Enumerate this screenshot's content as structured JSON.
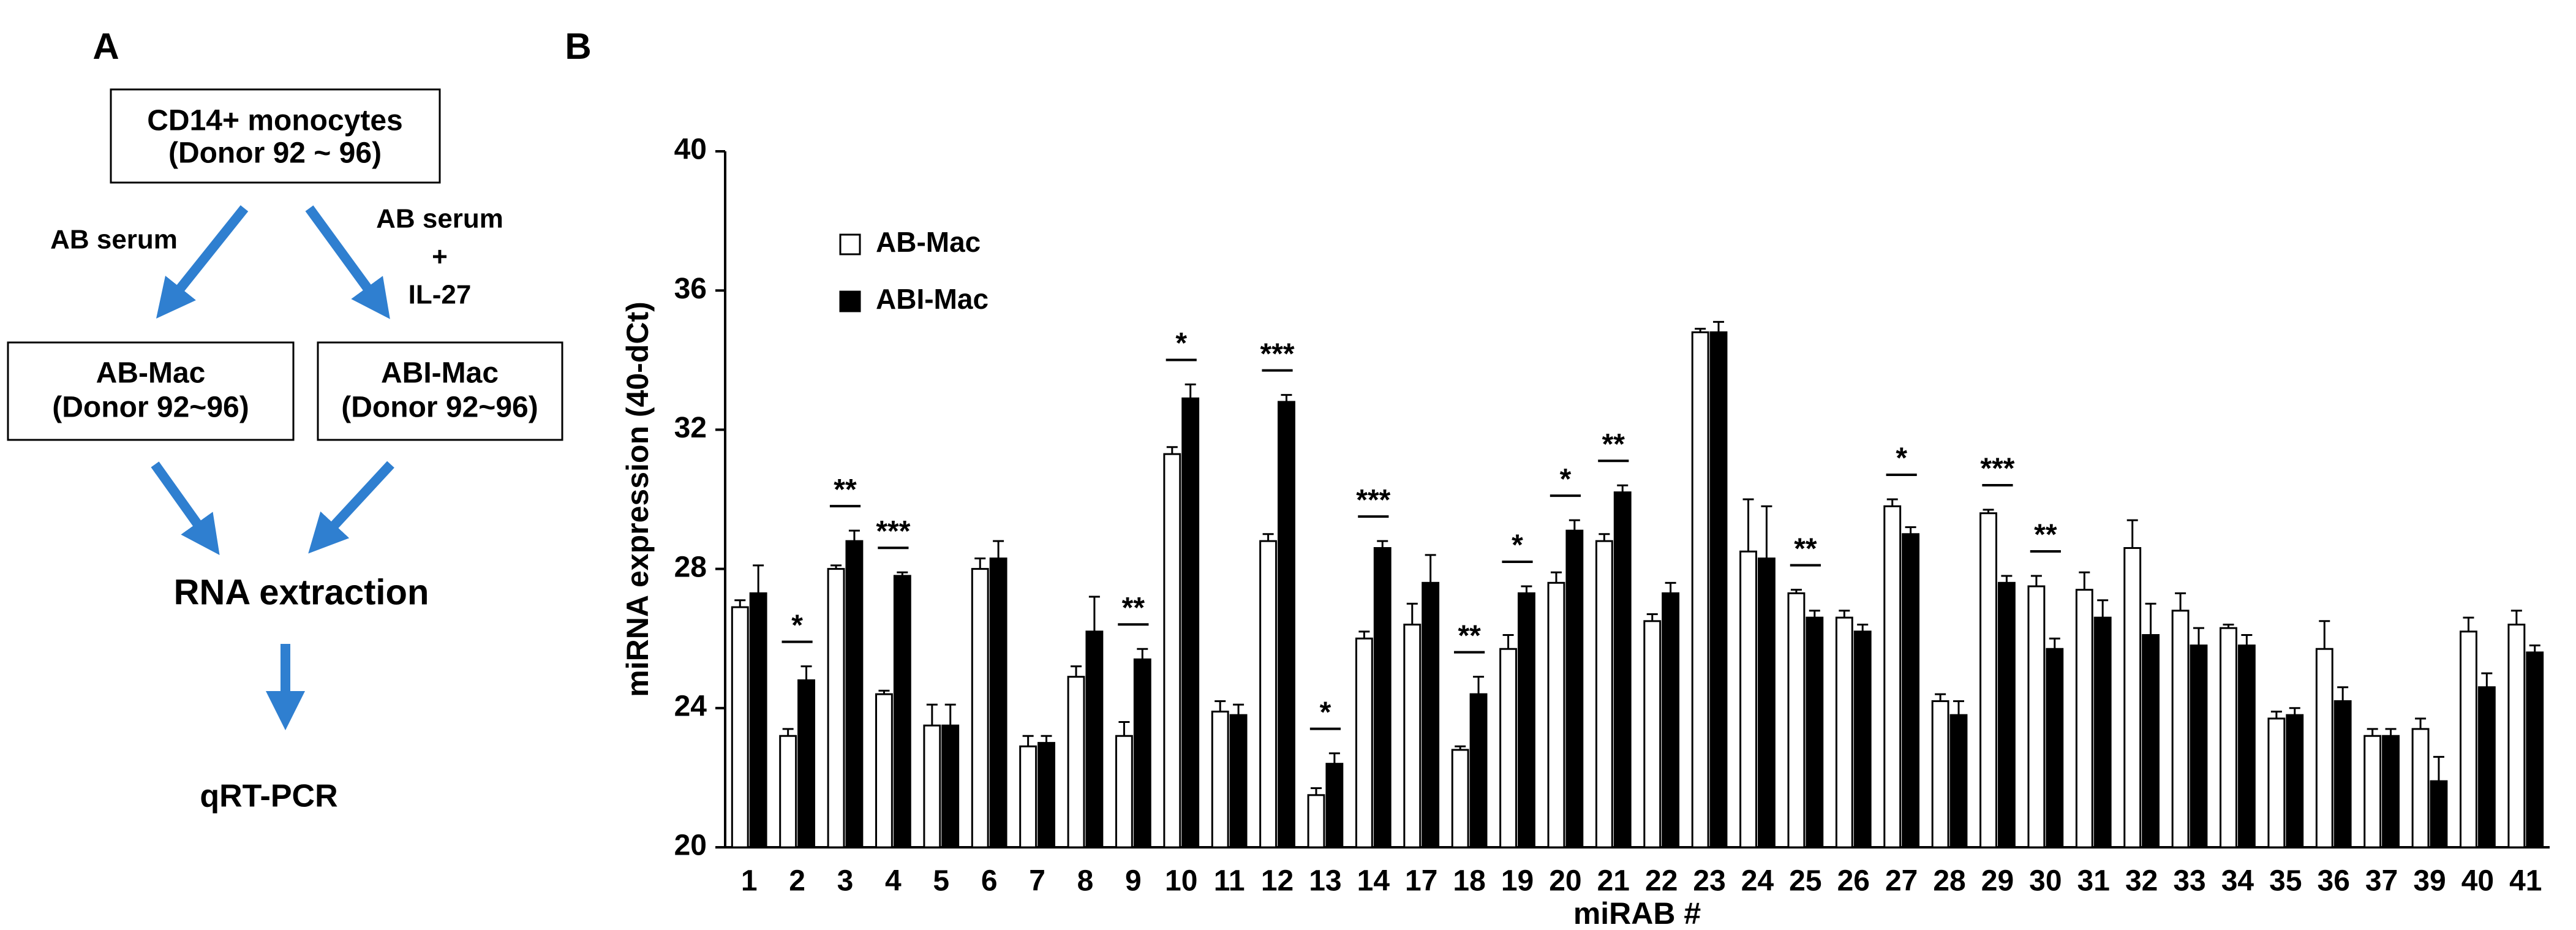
{
  "panel_a": {
    "label": "A",
    "nodes": [
      {
        "lines": [
          "CD14+ monocytes",
          "(Donor 92 ~ 96)"
        ]
      },
      {
        "lines": [
          "AB-Mac",
          "(Donor 92~96)"
        ]
      },
      {
        "lines": [
          "ABI-Mac",
          "(Donor 92~96)"
        ]
      },
      {
        "lines": [
          "RNA extraction"
        ]
      },
      {
        "lines": [
          "qRT-PCR"
        ]
      }
    ],
    "edge_labels": [
      [
        "AB serum"
      ],
      [
        "AB serum",
        "+",
        "IL-27"
      ]
    ]
  },
  "chart_data": {
    "type": "bar",
    "panel_label": "B",
    "x_label": "miRAB #",
    "y_label": "miRNA expression  (40-dCt)",
    "categories": [
      "1",
      "2",
      "3",
      "4",
      "5",
      "6",
      "7",
      "8",
      "9",
      "10",
      "11",
      "12",
      "13",
      "14",
      "17",
      "18",
      "19",
      "20",
      "21",
      "22",
      "23",
      "24",
      "25",
      "26",
      "27",
      "28",
      "29",
      "30",
      "31",
      "32",
      "33",
      "34",
      "35",
      "36",
      "37",
      "39",
      "40",
      "41"
    ],
    "series": [
      {
        "name": "AB-Mac",
        "color": "#ffffff",
        "values": [
          26.9,
          23.2,
          28.0,
          24.4,
          23.5,
          28.0,
          22.9,
          24.9,
          23.2,
          31.3,
          23.9,
          28.8,
          21.5,
          26.0,
          26.4,
          22.8,
          25.7,
          27.6,
          28.8,
          26.5,
          34.8,
          28.5,
          27.3,
          26.6,
          29.8,
          24.2,
          29.6,
          27.5,
          27.4,
          28.6,
          26.8,
          26.3,
          23.7,
          25.7,
          23.2,
          23.4,
          26.2,
          26.4
        ],
        "errors": [
          0.2,
          0.2,
          0.1,
          0.1,
          0.6,
          0.3,
          0.3,
          0.3,
          0.4,
          0.2,
          0.3,
          0.2,
          0.2,
          0.2,
          0.6,
          0.1,
          0.4,
          0.3,
          0.2,
          0.2,
          0.1,
          1.5,
          0.1,
          0.2,
          0.2,
          0.2,
          0.1,
          0.3,
          0.5,
          0.8,
          0.5,
          0.1,
          0.2,
          0.8,
          0.2,
          0.3,
          0.4,
          0.4
        ]
      },
      {
        "name": "ABI-Mac",
        "color": "#000000",
        "values": [
          27.3,
          24.8,
          28.8,
          27.8,
          23.5,
          28.3,
          23.0,
          26.2,
          25.4,
          32.9,
          23.8,
          32.8,
          22.4,
          28.6,
          27.6,
          24.4,
          27.3,
          29.1,
          30.2,
          27.3,
          34.8,
          28.3,
          26.6,
          26.2,
          29.0,
          23.8,
          27.6,
          25.7,
          26.6,
          26.1,
          25.8,
          25.8,
          23.8,
          24.2,
          23.2,
          21.9,
          24.6,
          25.6
        ],
        "errors": [
          0.8,
          0.4,
          0.3,
          0.1,
          0.6,
          0.5,
          0.2,
          1.0,
          0.3,
          0.4,
          0.3,
          0.2,
          0.3,
          0.2,
          0.8,
          0.5,
          0.2,
          0.3,
          0.2,
          0.3,
          0.3,
          1.5,
          0.2,
          0.2,
          0.2,
          0.4,
          0.2,
          0.3,
          0.5,
          0.9,
          0.5,
          0.3,
          0.2,
          0.4,
          0.2,
          0.7,
          0.4,
          0.2
        ]
      }
    ],
    "significance": [
      null,
      "*",
      "**",
      "***",
      null,
      null,
      null,
      null,
      "**",
      "*",
      null,
      "***",
      "*",
      "***",
      null,
      "**",
      "*",
      "*",
      "**",
      null,
      null,
      null,
      "**",
      null,
      "*",
      null,
      "***",
      "**",
      null,
      null,
      null,
      null,
      null,
      null,
      null,
      null,
      null,
      null
    ],
    "ylim": [
      20,
      40
    ],
    "yticks": [
      20,
      24,
      28,
      32,
      36,
      40
    ],
    "grid": false
  }
}
